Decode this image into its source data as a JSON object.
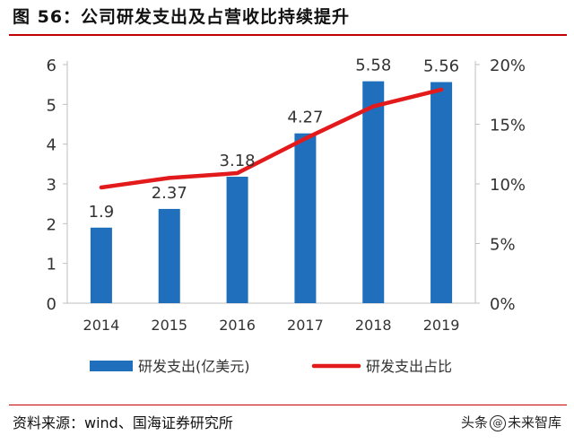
{
  "header": {
    "title": "图 56：公司研发支出及占营收比持续提升"
  },
  "chart_data": {
    "type": "bar",
    "categories": [
      "2014",
      "2015",
      "2016",
      "2017",
      "2018",
      "2019"
    ],
    "series": [
      {
        "name": "研发支出(亿美元)",
        "type": "bar",
        "axis": "left",
        "values": [
          1.9,
          2.37,
          3.18,
          4.27,
          5.58,
          5.56
        ],
        "color": "#1f6fbd"
      },
      {
        "name": "研发支出占比",
        "type": "line",
        "axis": "right",
        "values": [
          9.7,
          10.5,
          10.9,
          13.8,
          16.5,
          17.9
        ],
        "color": "#e31a1c"
      }
    ],
    "data_labels": [
      "1.9",
      "2.37",
      "3.18",
      "4.27",
      "5.58",
      "5.56"
    ],
    "ylim_left": [
      0,
      6
    ],
    "yticks_left": [
      "0",
      "1",
      "2",
      "3",
      "4",
      "5",
      "6"
    ],
    "ylim_right": [
      0,
      20
    ],
    "yticks_right": [
      "0%",
      "5%",
      "10%",
      "15%",
      "20%"
    ],
    "legend_position": "bottom",
    "grid": false
  },
  "footer": {
    "source": "资料来源：wind、国海证券研究所",
    "watermark_prefix": "头条",
    "watermark_at": "@",
    "watermark_name": "未来智库"
  }
}
